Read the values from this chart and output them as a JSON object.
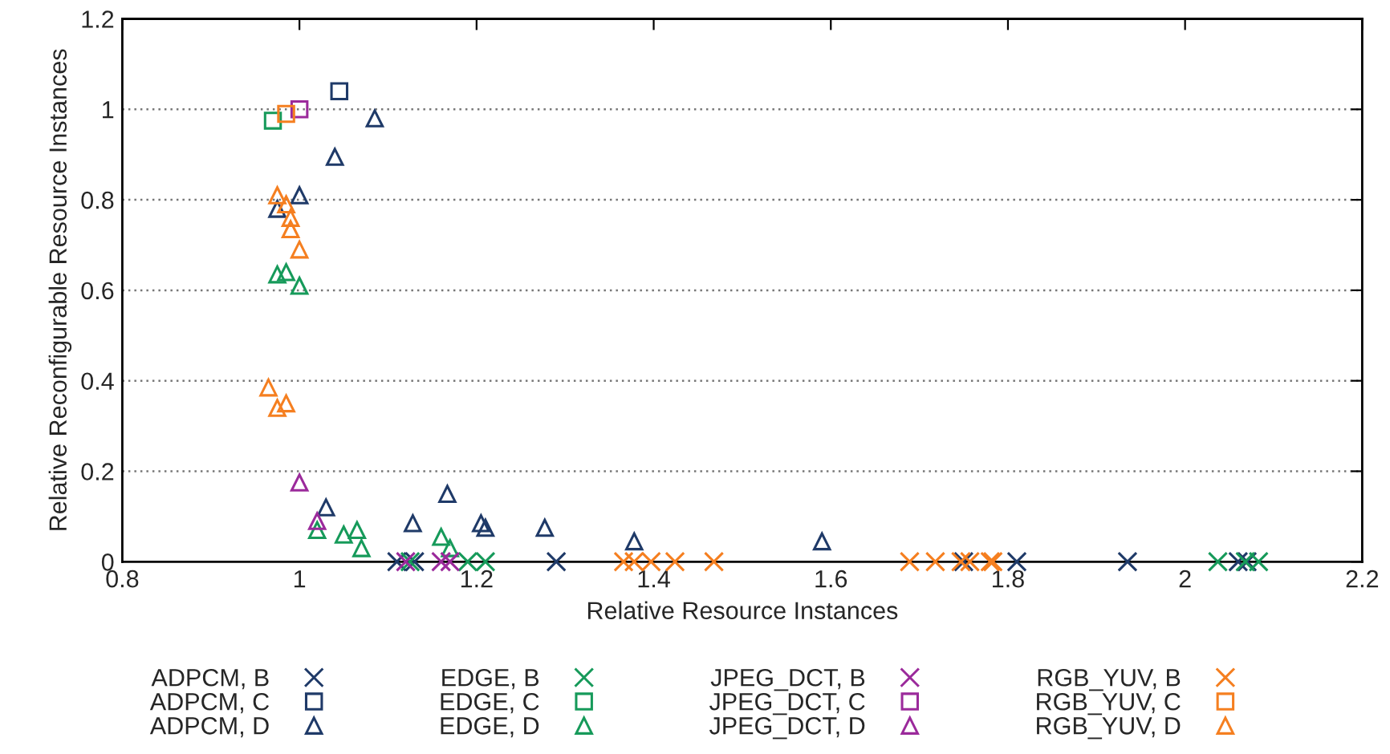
{
  "chart_data": {
    "type": "scatter",
    "xlabel": "Relative Resource Instances",
    "ylabel": "Relative Reconfigurable Resource Instances",
    "xlim": [
      0.8,
      2.2
    ],
    "xticks": [
      0.8,
      1,
      1.2,
      1.4,
      1.6,
      1.8,
      2,
      2.2
    ],
    "ylim": [
      0,
      1.2
    ],
    "yticks": [
      0,
      0.2,
      0.4,
      0.6,
      0.8,
      1,
      1.2
    ],
    "grid": "y",
    "legend": "bottom",
    "series": [
      {
        "name": "ADPCM, B",
        "color": "#1f3a68",
        "marker": "cross",
        "x": [
          1.11,
          1.13,
          1.29,
          1.75,
          1.81,
          1.935,
          2.06,
          2.07
        ],
        "values": [
          0,
          0,
          0,
          0,
          0,
          0,
          0,
          0
        ]
      },
      {
        "name": "ADPCM, C",
        "color": "#1f3a68",
        "marker": "square",
        "x": [
          1.045
        ],
        "values": [
          1.04
        ]
      },
      {
        "name": "ADPCM, D",
        "color": "#1f3a68",
        "marker": "triangle",
        "x": [
          1.085,
          1.04,
          1.0,
          0.975,
          1.03,
          1.167,
          1.128,
          1.21,
          1.205,
          1.277,
          1.378,
          1.59
        ],
        "values": [
          0.98,
          0.895,
          0.81,
          0.78,
          0.12,
          0.15,
          0.085,
          0.075,
          0.085,
          0.075,
          0.045,
          0.045
        ]
      },
      {
        "name": "EDGE, B",
        "color": "#169a5a",
        "marker": "cross",
        "x": [
          1.125,
          1.19,
          1.21,
          2.037,
          2.068,
          2.083
        ],
        "values": [
          0,
          0,
          0,
          0,
          0,
          0
        ]
      },
      {
        "name": "EDGE, C",
        "color": "#169a5a",
        "marker": "square",
        "x": [
          0.97
        ],
        "values": [
          0.975
        ]
      },
      {
        "name": "EDGE, D",
        "color": "#169a5a",
        "marker": "triangle",
        "x": [
          0.975,
          0.985,
          1.0,
          1.02,
          1.05,
          1.065,
          1.07,
          1.16,
          1.17
        ],
        "values": [
          0.635,
          0.64,
          0.61,
          0.07,
          0.06,
          0.07,
          0.03,
          0.055,
          0.03
        ]
      },
      {
        "name": "JPEG_DCT, B",
        "color": "#9b2a9b",
        "marker": "cross",
        "x": [
          1.12,
          1.16,
          1.17
        ],
        "values": [
          0,
          0,
          0
        ]
      },
      {
        "name": "JPEG_DCT, C",
        "color": "#9b2a9b",
        "marker": "square",
        "x": [
          1.0
        ],
        "values": [
          1.0
        ]
      },
      {
        "name": "JPEG_DCT, D",
        "color": "#9b2a9b",
        "marker": "triangle",
        "x": [
          1.0,
          1.02
        ],
        "values": [
          0.175,
          0.09
        ]
      },
      {
        "name": "RGB_YUV, B",
        "color": "#f57f20",
        "marker": "cross",
        "x": [
          1.366,
          1.378,
          1.397,
          1.424,
          1.468,
          1.689,
          1.718,
          1.747,
          1.757,
          1.78,
          1.783
        ],
        "values": [
          0,
          0,
          0,
          0,
          0,
          0,
          0,
          0,
          0,
          0,
          0
        ]
      },
      {
        "name": "RGB_YUV, C",
        "color": "#f57f20",
        "marker": "square",
        "x": [
          0.985
        ],
        "values": [
          0.99
        ]
      },
      {
        "name": "RGB_YUV, D",
        "color": "#f57f20",
        "marker": "triangle",
        "x": [
          0.975,
          0.985,
          0.99,
          0.99,
          1.0,
          0.965,
          0.975,
          0.985
        ],
        "values": [
          0.81,
          0.79,
          0.76,
          0.735,
          0.69,
          0.385,
          0.34,
          0.35
        ]
      }
    ]
  }
}
